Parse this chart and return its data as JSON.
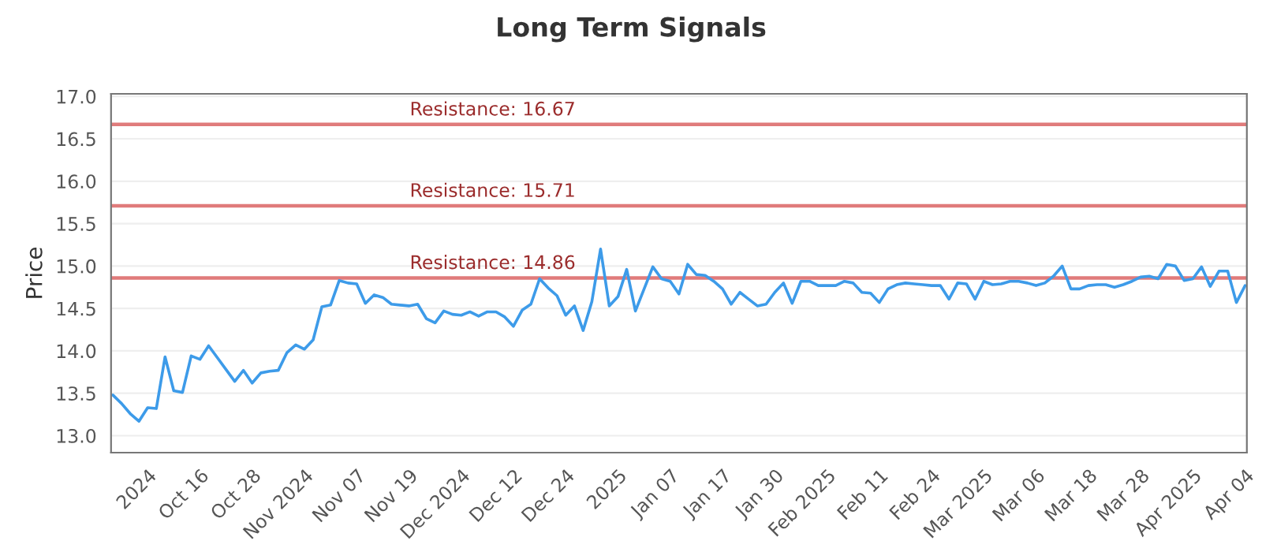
{
  "chart_data": {
    "type": "line",
    "title": "Long Term Signals",
    "ylabel": "Price",
    "categories": [
      null,
      null,
      null,
      null,
      "2024",
      null,
      null,
      null,
      null,
      null,
      "Oct 16",
      null,
      null,
      null,
      null,
      null,
      "Oct 28",
      null,
      null,
      null,
      null,
      null,
      "Nov 2024",
      null,
      null,
      null,
      null,
      null,
      "Nov 07",
      null,
      null,
      null,
      null,
      null,
      "Nov 19",
      null,
      null,
      null,
      null,
      null,
      "Dec 2024",
      null,
      null,
      null,
      null,
      null,
      "Dec 12",
      null,
      null,
      null,
      null,
      null,
      "Dec 24",
      null,
      null,
      null,
      null,
      null,
      "2025",
      null,
      null,
      null,
      null,
      null,
      "Jan 07",
      null,
      null,
      null,
      null,
      null,
      "Jan 17",
      null,
      null,
      null,
      null,
      null,
      "Jan 30",
      null,
      null,
      null,
      null,
      null,
      "Feb 2025",
      null,
      null,
      null,
      null,
      null,
      "Feb 11",
      null,
      null,
      null,
      null,
      null,
      "Feb 24",
      null,
      null,
      null,
      null,
      null,
      "Mar 2025",
      null,
      null,
      null,
      null,
      null,
      "Mar 06",
      null,
      null,
      null,
      null,
      null,
      "Mar 18",
      null,
      null,
      null,
      null,
      null,
      "Mar 28",
      null,
      null,
      null,
      null,
      null,
      "Apr 2025",
      null,
      null,
      null,
      null,
      null,
      "Apr 04"
    ],
    "series": [
      {
        "color": "#3d9be9",
        "values": [
          13.48,
          13.38,
          13.26,
          13.17,
          13.33,
          13.32,
          13.93,
          13.53,
          13.51,
          13.94,
          13.9,
          14.06,
          13.92,
          13.78,
          13.64,
          13.77,
          13.62,
          13.74,
          13.76,
          13.77,
          13.98,
          14.07,
          14.02,
          14.13,
          14.52,
          14.54,
          14.83,
          14.8,
          14.79,
          14.56,
          14.66,
          14.63,
          14.55,
          14.54,
          14.53,
          14.55,
          14.38,
          14.33,
          14.47,
          14.43,
          14.42,
          14.46,
          14.41,
          14.46,
          14.46,
          14.4,
          14.29,
          14.48,
          14.55,
          14.85,
          14.74,
          14.65,
          14.42,
          14.53,
          14.24,
          14.58,
          15.2,
          14.53,
          14.64,
          14.96,
          14.47,
          14.73,
          14.99,
          14.85,
          14.82,
          14.67,
          15.02,
          14.9,
          14.89,
          14.82,
          14.73,
          14.55,
          14.69,
          14.61,
          14.53,
          14.55,
          14.69,
          14.8,
          14.56,
          14.82,
          14.82,
          14.77,
          14.77,
          14.77,
          14.82,
          14.8,
          14.69,
          14.68,
          14.57,
          14.73,
          14.78,
          14.8,
          14.79,
          14.78,
          14.77,
          14.77,
          14.61,
          14.8,
          14.79,
          14.61,
          14.82,
          14.78,
          14.79,
          14.82,
          14.82,
          14.8,
          14.77,
          14.8,
          14.88,
          15.0,
          14.73,
          14.73,
          14.77,
          14.78,
          14.78,
          14.75,
          14.78,
          14.82,
          14.87,
          14.88,
          14.85,
          15.02,
          15.0,
          14.83,
          14.85,
          14.99,
          14.76,
          14.94,
          14.94,
          14.57,
          14.77
        ]
      }
    ],
    "ylim": [
      12.8,
      17.03
    ],
    "yticks": [
      {
        "value": 13,
        "label": "13.0"
      },
      13.5,
      {
        "value": 14,
        "label": "14.0"
      },
      14.5,
      {
        "value": 15,
        "label": "15.0"
      },
      15.5,
      {
        "value": 16,
        "label": "16.0"
      },
      16.5,
      {
        "value": 17,
        "label": "17.0"
      }
    ],
    "grid": "y",
    "legend": false,
    "marker": "none",
    "line_style": "solid",
    "ref_lines": [
      {
        "axis": "y",
        "value": 16.67,
        "label": "Resistance: 16.67",
        "color": "#e07b7b"
      },
      {
        "axis": "y",
        "value": 15.71,
        "label": "Resistance: 15.71",
        "color": "#e07b7b"
      },
      {
        "axis": "y",
        "value": 14.86,
        "label": "Resistance: 14.86",
        "color": "#e07b7b"
      }
    ]
  }
}
